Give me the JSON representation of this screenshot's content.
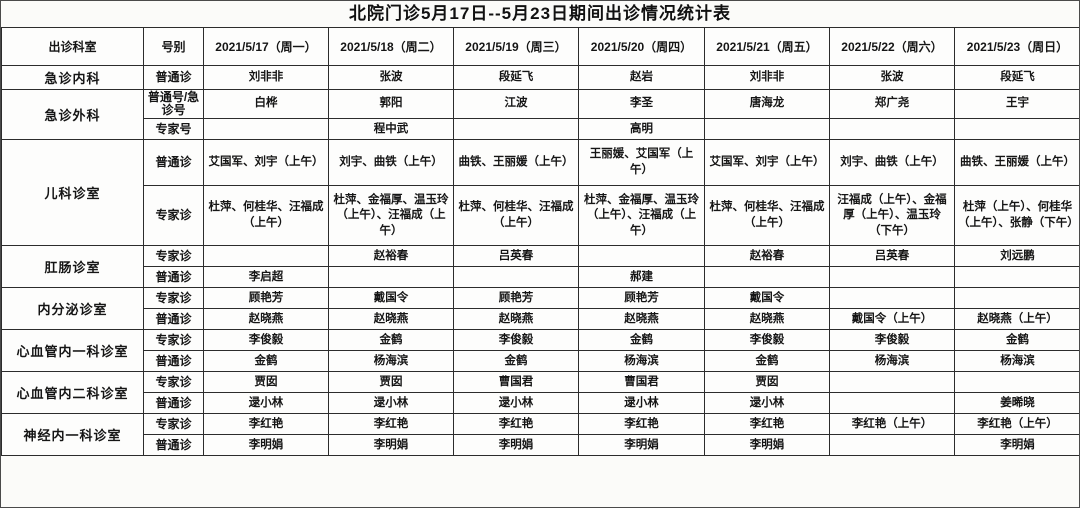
{
  "title": "北院门诊5月17日--5月23日期间出诊情况统计表",
  "table": {
    "headers": [
      "出诊科室",
      "号别",
      "2021/5/17（周一）",
      "2021/5/18（周二）",
      "2021/5/19（周三）",
      "2021/5/20（周四）",
      "2021/5/21（周五）",
      "2021/5/22（周六）",
      "2021/5/23（周日）"
    ],
    "departments": [
      {
        "name": "急诊内科",
        "rows": [
          {
            "type": "普通诊",
            "cells": [
              "刘非非",
              "张波",
              "段延飞",
              "赵岩",
              "刘非非",
              "张波",
              "段延飞"
            ]
          }
        ]
      },
      {
        "name": "急诊外科",
        "rows": [
          {
            "type": "普通号/急诊号",
            "cells": [
              "白桦",
              "郭阳",
              "江波",
              "李圣",
              "唐海龙",
              "郑广尧",
              "王宇"
            ]
          },
          {
            "type": "专家号",
            "cells": [
              "",
              "程中武",
              "",
              "高明",
              "",
              "",
              ""
            ]
          }
        ]
      },
      {
        "name": "儿科诊室",
        "rows": [
          {
            "type": "普通诊",
            "size": "tall-1",
            "cells": [
              "艾国军、刘宇（上午）",
              "刘宇、曲铁（上午）",
              "曲铁、王丽媛（上午）",
              "王丽媛、艾国军（上午）",
              "艾国军、刘宇（上午）",
              "刘宇、曲铁（上午）",
              "曲铁、王丽媛（上午）"
            ]
          },
          {
            "type": "专家诊",
            "size": "tall-2",
            "cells": [
              "杜萍、何桂华、汪福成（上午）",
              "杜萍、金福厚、温玉玲（上午）、汪福成（上午）",
              "杜萍、何桂华、汪福成（上午）",
              "杜萍、金福厚、温玉玲（上午）、汪福成（上午）",
              "杜萍、何桂华、汪福成（上午）",
              "汪福成（上午）、金福厚（上午）、温玉玲（下午）",
              "杜萍（上午）、何桂华（上午）、张静（下午）"
            ]
          }
        ]
      },
      {
        "name": "肛肠诊室",
        "rows": [
          {
            "type": "专家诊",
            "cells": [
              "",
              "赵裕春",
              "吕英春",
              "",
              "赵裕春",
              "吕英春",
              "刘远鹏"
            ]
          },
          {
            "type": "普通诊",
            "cells": [
              "李启超",
              "",
              "",
              "郝建",
              "",
              "",
              ""
            ]
          }
        ]
      },
      {
        "name": "内分泌诊室",
        "rows": [
          {
            "type": "专家诊",
            "cells": [
              "顾艳芳",
              "戴国令",
              "顾艳芳",
              "顾艳芳",
              "戴国令",
              "",
              ""
            ]
          },
          {
            "type": "普通诊",
            "cells": [
              "赵晓燕",
              "赵晓燕",
              "赵晓燕",
              "赵晓燕",
              "赵晓燕",
              "戴国令（上午）",
              "赵晓燕（上午）"
            ]
          }
        ]
      },
      {
        "name": "心血管内一科诊室",
        "rows": [
          {
            "type": "专家诊",
            "cells": [
              "李俊毅",
              "金鹤",
              "李俊毅",
              "金鹤",
              "李俊毅",
              "李俊毅",
              "金鹤"
            ]
          },
          {
            "type": "普通诊",
            "cells": [
              "金鹤",
              "杨海滨",
              "金鹤",
              "杨海滨",
              "金鹤",
              "杨海滨",
              "杨海滨"
            ]
          }
        ]
      },
      {
        "name": "心血管内二科诊室",
        "rows": [
          {
            "type": "专家诊",
            "cells": [
              "贾囡",
              "贾囡",
              "曹国君",
              "曹国君",
              "贾囡",
              "",
              ""
            ]
          },
          {
            "type": "普通诊",
            "cells": [
              "逯小林",
              "逯小林",
              "逯小林",
              "逯小林",
              "逯小林",
              "",
              "姜晞晓"
            ]
          }
        ]
      },
      {
        "name": "神经内一科诊室",
        "rows": [
          {
            "type": "专家诊",
            "cells": [
              "李红艳",
              "李红艳",
              "李红艳",
              "李红艳",
              "李红艳",
              "李红艳（上午）",
              "李红艳（上午）"
            ]
          },
          {
            "type": "普通诊",
            "cells": [
              "李明娟",
              "李明娟",
              "李明娟",
              "李明娟",
              "李明娟",
              "",
              "李明娟"
            ]
          }
        ]
      }
    ]
  }
}
